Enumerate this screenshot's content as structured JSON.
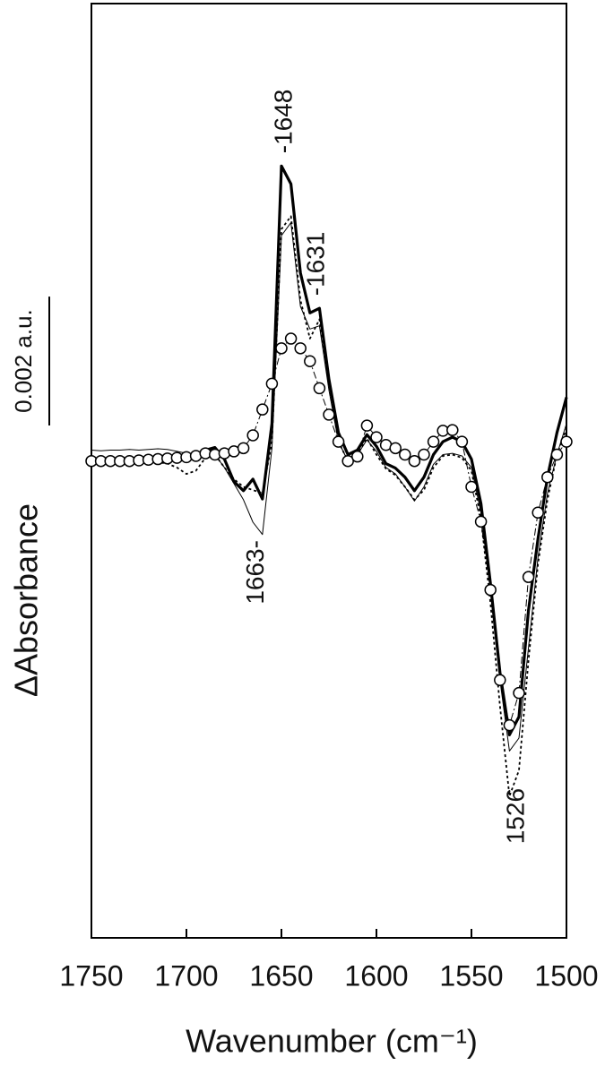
{
  "chart_data": {
    "type": "line",
    "x_label": "Wavenumber (cm⁻¹)",
    "y_label": "ΔAbsorbance",
    "scale_bar": {
      "value": 0.002,
      "label": "0.002 a.u."
    },
    "xlim": [
      1750,
      1500
    ],
    "xticks": [
      1750,
      1700,
      1650,
      1600,
      1550,
      1500
    ],
    "ylim": [
      -0.0074,
      0.0071
    ],
    "x": [
      1750,
      1745,
      1740,
      1735,
      1730,
      1725,
      1720,
      1715,
      1710,
      1705,
      1700,
      1695,
      1690,
      1685,
      1680,
      1675,
      1670,
      1665,
      1660,
      1655,
      1650,
      1645,
      1640,
      1635,
      1630,
      1625,
      1620,
      1615,
      1610,
      1605,
      1600,
      1595,
      1590,
      1585,
      1580,
      1575,
      1570,
      1565,
      1560,
      1555,
      1550,
      1545,
      1540,
      1535,
      1530,
      1525,
      1520,
      1515,
      1510,
      1505,
      1500
    ],
    "series": [
      {
        "style": "thick",
        "color": "#000000",
        "values": [
          0,
          -1e-05,
          -1e-05,
          -1e-05,
          -1e-05,
          0,
          0,
          1e-05,
          1e-05,
          3e-05,
          6e-05,
          8e-05,
          0.00017,
          0.00021,
          3e-05,
          -0.00032,
          -0.00046,
          -0.00028,
          -0.00059,
          0.00058,
          0.00458,
          0.0043,
          0.00292,
          0.0023,
          0.00237,
          0.00127,
          0.00044,
          0.0001,
          0.00017,
          0.00041,
          0.00023,
          -4e-05,
          -0.00011,
          -0.00025,
          -0.00046,
          -0.00025,
          0.0001,
          0.0003,
          0.00037,
          0.0003,
          3e-05,
          -0.00066,
          -0.0019,
          -0.00328,
          -0.00425,
          -0.00397,
          -0.00232,
          -0.00121,
          -0.00025,
          0.00044,
          0.00099
        ]
      },
      {
        "style": "thin",
        "color": "#000000",
        "values": [
          0.00017,
          0.00016,
          0.00017,
          0.00017,
          0.00018,
          0.00017,
          0.00018,
          0.00019,
          0.00018,
          0.00015,
          0.00012,
          8e-05,
          0.00014,
          0.0001,
          -0.0001,
          -0.00035,
          -0.0006,
          -0.00095,
          -0.00114,
          0.0002,
          0.0035,
          0.0037,
          0.0024,
          0.00205,
          0.0021,
          0.0011,
          0.0003,
          0,
          0.0001,
          0.00033,
          0.00015,
          -0.0001,
          -0.0002,
          -0.0004,
          -0.00062,
          -0.0004,
          -5e-05,
          0.0001,
          0.00012,
          8e-05,
          -0.0001,
          -0.0008,
          -0.002,
          -0.0034,
          -0.0045,
          -0.0043,
          -0.0029,
          -0.0015,
          -0.0005,
          0.0001,
          0.00058
        ]
      },
      {
        "style": "dotted",
        "color": "#000000",
        "values": [
          0,
          0,
          0,
          0,
          0,
          0,
          0,
          -2e-05,
          -4e-05,
          -0.0001,
          -0.0002,
          -0.00015,
          5e-05,
          0.0001,
          -0.0001,
          -0.00028,
          -0.0004,
          -0.00045,
          -0.0005,
          0.0003,
          0.0036,
          0.0038,
          0.0025,
          0.0019,
          0.0022,
          0.0012,
          0.0003,
          0,
          0.0001,
          0.00035,
          0.0001,
          -0.00012,
          -0.00022,
          -0.0004,
          -0.0006,
          -0.00045,
          -0.0001,
          8e-05,
          0.0001,
          5e-05,
          -0.00015,
          -0.0009,
          -0.0022,
          -0.0038,
          -0.0052,
          -0.0048,
          -0.0031,
          -0.0016,
          -0.0006,
          0.0001,
          0.0005
        ]
      },
      {
        "style": "circles",
        "color": "#000000",
        "values": [
          0,
          0,
          0,
          0,
          0,
          1e-05,
          2e-05,
          3e-05,
          4e-05,
          5e-05,
          6e-05,
          8e-05,
          0.00012,
          0.0001,
          0.00012,
          0.00015,
          0.0002,
          0.0004,
          0.0008,
          0.0012,
          0.00175,
          0.0019,
          0.00175,
          0.00155,
          0.00113,
          0.00072,
          0.0003,
          0,
          7e-05,
          0.00055,
          0.00037,
          0.00025,
          0.0002,
          0.0001,
          0,
          0.0001,
          0.0003,
          0.00047,
          0.00048,
          0.0003,
          -0.0004,
          -0.00094,
          -0.002,
          -0.0034,
          -0.0041,
          -0.0036,
          -0.0018,
          -0.0008,
          -0.00025,
          0.0001,
          0.0003
        ]
      }
    ],
    "annotations": [
      {
        "text": "-1648",
        "x": 1648,
        "side": "above"
      },
      {
        "text": "-1631",
        "x": 1631,
        "side": "above"
      },
      {
        "text": "1663-",
        "x": 1663,
        "side": "below"
      },
      {
        "text": "1526",
        "x": 1526,
        "side": "below"
      }
    ]
  }
}
